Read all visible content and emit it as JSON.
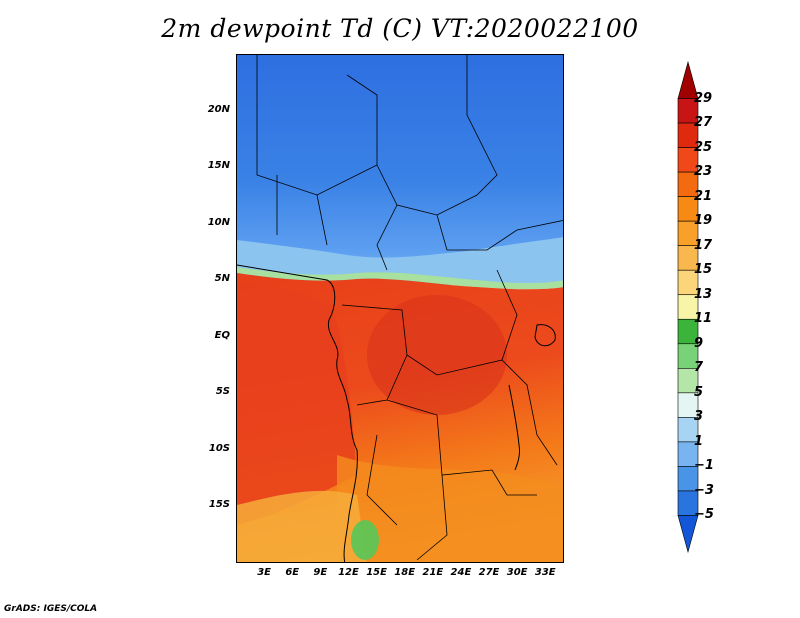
{
  "title": "2m dewpoint Td (C) VT:2020022100",
  "credit": "GrADS: IGES/COLA",
  "map": {
    "lat_labels": [
      "20N",
      "15N",
      "10N",
      "5N",
      "EQ",
      "5S",
      "10S",
      "15S"
    ],
    "lat_values": [
      20,
      15,
      10,
      5,
      0,
      -5,
      -10,
      -15
    ],
    "lat_range": [
      -20,
      25
    ],
    "lon_labels": [
      "3E",
      "6E",
      "9E",
      "12E",
      "15E",
      "18E",
      "21E",
      "24E",
      "27E",
      "30E",
      "33E"
    ],
    "lon_values": [
      3,
      6,
      9,
      12,
      15,
      18,
      21,
      24,
      27,
      30,
      33
    ],
    "lon_range": [
      0,
      35
    ]
  },
  "colorbar": {
    "labels": [
      "29",
      "27",
      "25",
      "23",
      "21",
      "19",
      "17",
      "15",
      "13",
      "11",
      "9",
      "7",
      "5",
      "3",
      "1",
      "−1",
      "−3",
      "−5"
    ],
    "colors": [
      "#a00000",
      "#c81414",
      "#e02a10",
      "#f04818",
      "#f46a10",
      "#f68a14",
      "#f8a02a",
      "#f9b84e",
      "#fbd57a",
      "#f8f4a8",
      "#3cb43c",
      "#78d278",
      "#b4e6a8",
      "#e4f6f4",
      "#a8d4f4",
      "#78b4f0",
      "#4a94e8",
      "#2a74e0",
      "#1456d8"
    ]
  }
}
